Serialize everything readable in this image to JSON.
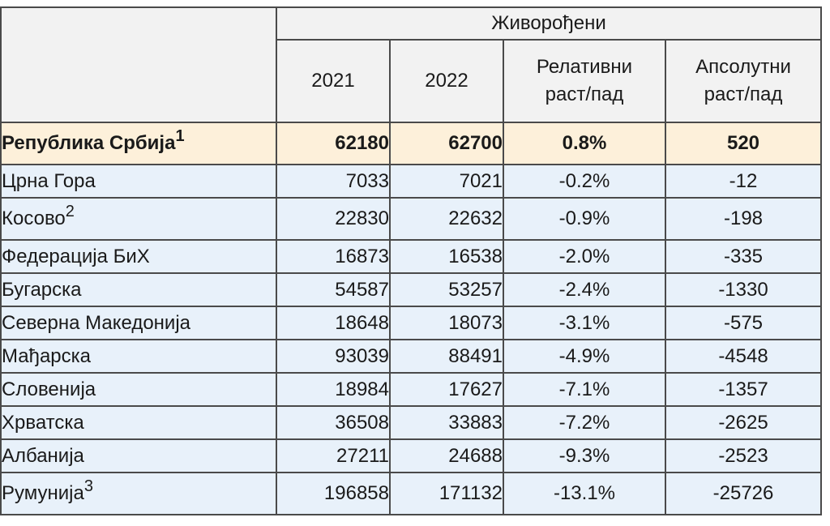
{
  "header": {
    "group_label": "Живорођени",
    "columns": [
      "2021",
      "2022",
      "Релативни\nраст/пад",
      "Апсолутни\nраст/пад"
    ],
    "col3_line1": "Релативни",
    "col3_line2": "раст/пад",
    "col4_line1": "Апсолутни",
    "col4_line2": "раст/пад"
  },
  "rows": [
    {
      "name": "Република Србија",
      "note": "1",
      "y2021": "62180",
      "y2022": "62700",
      "rel": "0.8%",
      "abs": "520"
    },
    {
      "name": "Црна Гора",
      "note": "",
      "y2021": "7033",
      "y2022": "7021",
      "rel": "-0.2%",
      "abs": "-12"
    },
    {
      "name": "Косово",
      "note": "2",
      "y2021": "22830",
      "y2022": "22632",
      "rel": "-0.9%",
      "abs": "-198"
    },
    {
      "name": "Федерација БиХ",
      "note": "",
      "y2021": "16873",
      "y2022": "16538",
      "rel": "-2.0%",
      "abs": "-335"
    },
    {
      "name": "Бугарска",
      "note": "",
      "y2021": "54587",
      "y2022": "53257",
      "rel": "-2.4%",
      "abs": "-1330"
    },
    {
      "name": "Северна Македонија",
      "note": "",
      "y2021": "18648",
      "y2022": "18073",
      "rel": "-3.1%",
      "abs": "-575"
    },
    {
      "name": "Мађарска",
      "note": "",
      "y2021": "93039",
      "y2022": "88491",
      "rel": "-4.9%",
      "abs": "-4548"
    },
    {
      "name": "Словенија",
      "note": "",
      "y2021": "18984",
      "y2022": "17627",
      "rel": "-7.1%",
      "abs": "-1357"
    },
    {
      "name": "Хрватска",
      "note": "",
      "y2021": "36508",
      "y2022": "33883",
      "rel": "-7.2%",
      "abs": "-2625"
    },
    {
      "name": "Албанија",
      "note": "",
      "y2021": "27211",
      "y2022": "24688",
      "rel": "-9.3%",
      "abs": "-2523"
    },
    {
      "name": "Румунија",
      "note": "3",
      "y2021": "196858",
      "y2022": "171132",
      "rel": "-13.1%",
      "abs": "-25726"
    }
  ],
  "colors": {
    "header_bg": "#f2f2f2",
    "highlight_bg": "#fdf0da",
    "row_bg": "#e8f1fa",
    "border": "#4a4a4a"
  }
}
